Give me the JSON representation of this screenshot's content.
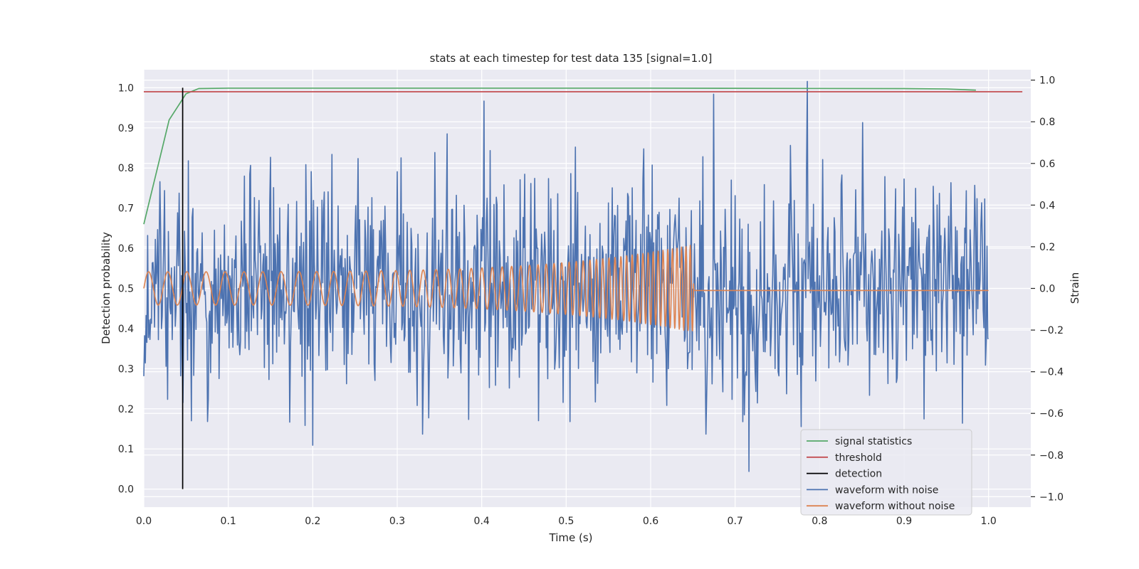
{
  "chart_data": {
    "type": "line",
    "title": "stats at each timestep for test data 135 [signal=1.0]",
    "xlabel": "Time (s)",
    "ylabel_left": "Detection probability",
    "ylabel_right": "Strain",
    "xlim": [
      0.0,
      1.05
    ],
    "ylim_left": [
      -0.045,
      1.045
    ],
    "ylim_right": [
      -1.05,
      1.05
    ],
    "xticks": [
      "0.0",
      "0.1",
      "0.2",
      "0.3",
      "0.4",
      "0.5",
      "0.6",
      "0.7",
      "0.8",
      "0.9",
      "1.0"
    ],
    "yticks_left": [
      "0.0",
      "0.1",
      "0.2",
      "0.3",
      "0.4",
      "0.5",
      "0.6",
      "0.7",
      "0.8",
      "0.9",
      "1.0"
    ],
    "yticks_right": [
      "−1.0",
      "−0.8",
      "−0.6",
      "−0.4",
      "−0.2",
      "0.0",
      "0.2",
      "0.4",
      "0.6",
      "0.8",
      "1.0"
    ],
    "grid": true,
    "legend_position": "lower-right",
    "background_color": "#eaeaf2",
    "series": [
      {
        "name": "signal statistics",
        "axis": "left",
        "color": "#55a868",
        "x": [
          0.0,
          0.03,
          0.05,
          0.065,
          0.1,
          0.3,
          0.6,
          0.9,
          0.95,
          0.985
        ],
        "y": [
          0.66,
          0.92,
          0.985,
          0.998,
          0.999,
          0.999,
          0.999,
          0.998,
          0.997,
          0.994
        ]
      },
      {
        "name": "threshold",
        "axis": "left",
        "color": "#c44e52",
        "x": [
          0.0,
          1.04
        ],
        "y": [
          0.99,
          0.99
        ]
      },
      {
        "name": "detection",
        "axis": "left",
        "color": "#000000",
        "x": [
          0.046,
          0.046
        ],
        "y": [
          0.0,
          1.0
        ]
      },
      {
        "name": "waveform with noise",
        "axis": "right",
        "color": "#4c72b0",
        "generator": {
          "type": "noise",
          "x_start": 0.0,
          "x_end": 1.0,
          "points": 1100,
          "amplitude": 0.27,
          "seed": 135
        }
      },
      {
        "name": "waveform without noise",
        "axis": "right",
        "color": "#dd8452",
        "generator": {
          "type": "chirp",
          "x_start": 0.0,
          "x_end": 1.0,
          "x_merge": 0.651,
          "f_start": 44,
          "f_end": 200,
          "amp_start": 0.08,
          "amp_end": 0.21
        }
      }
    ]
  }
}
